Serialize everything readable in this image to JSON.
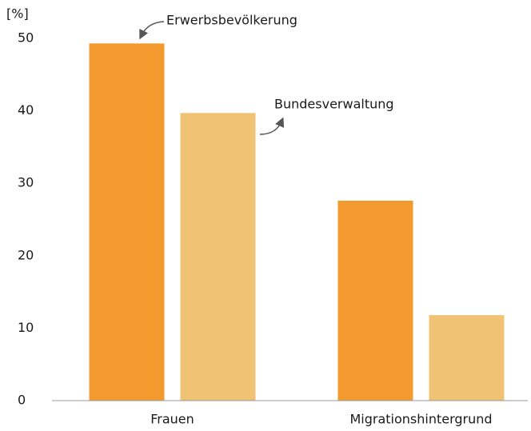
{
  "chart_data": {
    "type": "bar",
    "y_label": "[%]",
    "categories": [
      "Frauen",
      "Migrationshintergrund"
    ],
    "series": [
      {
        "name": "Erwerbsbevölkerung",
        "color": "#f39a2e",
        "values": [
          49.3,
          27.6
        ]
      },
      {
        "name": "Bundesverwaltung",
        "color": "#f0c374",
        "values": [
          39.7,
          11.8
        ]
      }
    ],
    "ylim": [
      0,
      50
    ],
    "yticks": [
      0,
      10,
      20,
      30,
      40,
      50
    ],
    "grid": false
  }
}
